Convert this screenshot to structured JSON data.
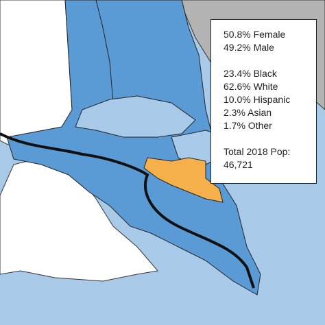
{
  "stats": {
    "gender": [
      "50.8% Female",
      "49.2% Male"
    ],
    "race": [
      "23.4% Black",
      "62.6% White",
      "10.0% Hispanic",
      "2.3% Asian",
      "1.7% Other"
    ],
    "population": {
      "label": "Total 2018 Pop:",
      "value": "46,721"
    }
  }
}
